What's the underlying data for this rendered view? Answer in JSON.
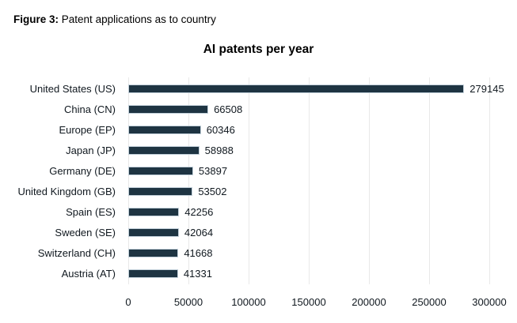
{
  "caption": {
    "label": "Figure 3:",
    "text": " Patent applications as to country"
  },
  "chart_data": {
    "type": "bar",
    "orientation": "horizontal",
    "title": "AI patents per year",
    "categories": [
      "United States (US)",
      "China (CN)",
      "Europe (EP)",
      "Japan (JP)",
      "Germany (DE)",
      "United Kingdom (GB)",
      "Spain (ES)",
      "Sweden (SE)",
      "Switzerland (CH)",
      "Austria (AT)"
    ],
    "values": [
      279145,
      66508,
      60346,
      58988,
      53897,
      53502,
      42256,
      42064,
      41668,
      41331
    ],
    "value_labels": [
      "279145",
      "66508",
      "60346",
      "58988",
      "53897",
      "53502",
      "42256",
      "42064",
      "41668",
      "41331"
    ],
    "xlabel": "",
    "ylabel": "",
    "xlim": [
      0,
      300000
    ],
    "xticks": [
      0,
      50000,
      100000,
      150000,
      200000,
      250000,
      300000
    ],
    "xtick_labels": [
      "0",
      "50000",
      "100000",
      "150000",
      "200000",
      "250000",
      "300000"
    ],
    "grid": true,
    "legend": false,
    "colors": {
      "bar": "#1e3442",
      "bar_border": "#c2d0da",
      "gridline": "#e9e9e9",
      "text": "#10181f",
      "title": "#000000"
    }
  }
}
